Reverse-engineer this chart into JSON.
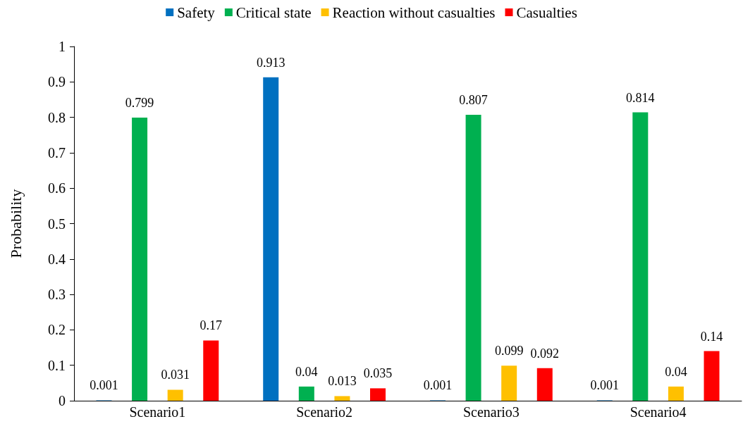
{
  "chart_data": {
    "type": "bar",
    "ylabel": "Probability",
    "categories": [
      "Scenario1",
      "Scenario2",
      "Scenario3",
      "Scenario4"
    ],
    "series": [
      {
        "name": "Safety",
        "color": "#0070c0",
        "values": [
          0.001,
          0.913,
          0.001,
          0.001
        ]
      },
      {
        "name": "Critical state",
        "color": "#00b050",
        "values": [
          0.799,
          0.04,
          0.807,
          0.814
        ]
      },
      {
        "name": "Reaction without casualties",
        "color": "#ffc000",
        "values": [
          0.031,
          0.013,
          0.099,
          0.04
        ]
      },
      {
        "name": "Casualties",
        "color": "#ff0000",
        "values": [
          0.17,
          0.035,
          0.092,
          0.14
        ]
      }
    ],
    "ylim": [
      0,
      1
    ],
    "yticks": [
      0,
      0.1,
      0.2,
      0.3,
      0.4,
      0.5,
      0.6,
      0.7,
      0.8,
      0.9,
      1
    ],
    "grid": false,
    "legend": "top",
    "data_labels": true
  }
}
